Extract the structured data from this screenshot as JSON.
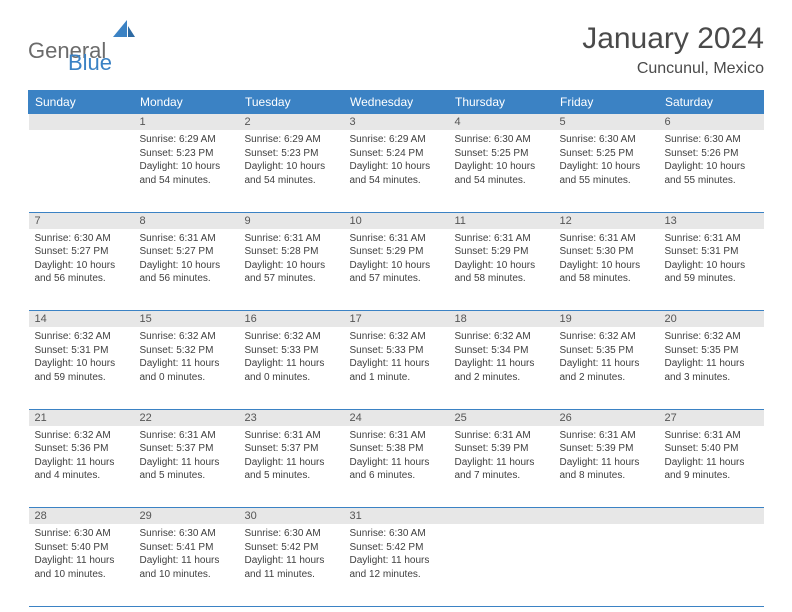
{
  "logo": {
    "word1": "General",
    "word2": "Blue"
  },
  "title": "January 2024",
  "location": "Cuncunul, Mexico",
  "colors": {
    "header_bg": "#3b82c4",
    "header_fg": "#ffffff",
    "daynum_bg": "#e7e7e7",
    "cell_border": "#3b82c4",
    "logo_gray": "#6b6b6b",
    "logo_blue": "#3b82c4",
    "text": "#404040"
  },
  "days_of_week": [
    "Sunday",
    "Monday",
    "Tuesday",
    "Wednesday",
    "Thursday",
    "Friday",
    "Saturday"
  ],
  "weeks": [
    {
      "nums": [
        "",
        "1",
        "2",
        "3",
        "4",
        "5",
        "6"
      ],
      "cells": [
        null,
        {
          "sunrise": "Sunrise: 6:29 AM",
          "sunset": "Sunset: 5:23 PM",
          "day1": "Daylight: 10 hours",
          "day2": "and 54 minutes."
        },
        {
          "sunrise": "Sunrise: 6:29 AM",
          "sunset": "Sunset: 5:23 PM",
          "day1": "Daylight: 10 hours",
          "day2": "and 54 minutes."
        },
        {
          "sunrise": "Sunrise: 6:29 AM",
          "sunset": "Sunset: 5:24 PM",
          "day1": "Daylight: 10 hours",
          "day2": "and 54 minutes."
        },
        {
          "sunrise": "Sunrise: 6:30 AM",
          "sunset": "Sunset: 5:25 PM",
          "day1": "Daylight: 10 hours",
          "day2": "and 54 minutes."
        },
        {
          "sunrise": "Sunrise: 6:30 AM",
          "sunset": "Sunset: 5:25 PM",
          "day1": "Daylight: 10 hours",
          "day2": "and 55 minutes."
        },
        {
          "sunrise": "Sunrise: 6:30 AM",
          "sunset": "Sunset: 5:26 PM",
          "day1": "Daylight: 10 hours",
          "day2": "and 55 minutes."
        }
      ]
    },
    {
      "nums": [
        "7",
        "8",
        "9",
        "10",
        "11",
        "12",
        "13"
      ],
      "cells": [
        {
          "sunrise": "Sunrise: 6:30 AM",
          "sunset": "Sunset: 5:27 PM",
          "day1": "Daylight: 10 hours",
          "day2": "and 56 minutes."
        },
        {
          "sunrise": "Sunrise: 6:31 AM",
          "sunset": "Sunset: 5:27 PM",
          "day1": "Daylight: 10 hours",
          "day2": "and 56 minutes."
        },
        {
          "sunrise": "Sunrise: 6:31 AM",
          "sunset": "Sunset: 5:28 PM",
          "day1": "Daylight: 10 hours",
          "day2": "and 57 minutes."
        },
        {
          "sunrise": "Sunrise: 6:31 AM",
          "sunset": "Sunset: 5:29 PM",
          "day1": "Daylight: 10 hours",
          "day2": "and 57 minutes."
        },
        {
          "sunrise": "Sunrise: 6:31 AM",
          "sunset": "Sunset: 5:29 PM",
          "day1": "Daylight: 10 hours",
          "day2": "and 58 minutes."
        },
        {
          "sunrise": "Sunrise: 6:31 AM",
          "sunset": "Sunset: 5:30 PM",
          "day1": "Daylight: 10 hours",
          "day2": "and 58 minutes."
        },
        {
          "sunrise": "Sunrise: 6:31 AM",
          "sunset": "Sunset: 5:31 PM",
          "day1": "Daylight: 10 hours",
          "day2": "and 59 minutes."
        }
      ]
    },
    {
      "nums": [
        "14",
        "15",
        "16",
        "17",
        "18",
        "19",
        "20"
      ],
      "cells": [
        {
          "sunrise": "Sunrise: 6:32 AM",
          "sunset": "Sunset: 5:31 PM",
          "day1": "Daylight: 10 hours",
          "day2": "and 59 minutes."
        },
        {
          "sunrise": "Sunrise: 6:32 AM",
          "sunset": "Sunset: 5:32 PM",
          "day1": "Daylight: 11 hours",
          "day2": "and 0 minutes."
        },
        {
          "sunrise": "Sunrise: 6:32 AM",
          "sunset": "Sunset: 5:33 PM",
          "day1": "Daylight: 11 hours",
          "day2": "and 0 minutes."
        },
        {
          "sunrise": "Sunrise: 6:32 AM",
          "sunset": "Sunset: 5:33 PM",
          "day1": "Daylight: 11 hours",
          "day2": "and 1 minute."
        },
        {
          "sunrise": "Sunrise: 6:32 AM",
          "sunset": "Sunset: 5:34 PM",
          "day1": "Daylight: 11 hours",
          "day2": "and 2 minutes."
        },
        {
          "sunrise": "Sunrise: 6:32 AM",
          "sunset": "Sunset: 5:35 PM",
          "day1": "Daylight: 11 hours",
          "day2": "and 2 minutes."
        },
        {
          "sunrise": "Sunrise: 6:32 AM",
          "sunset": "Sunset: 5:35 PM",
          "day1": "Daylight: 11 hours",
          "day2": "and 3 minutes."
        }
      ]
    },
    {
      "nums": [
        "21",
        "22",
        "23",
        "24",
        "25",
        "26",
        "27"
      ],
      "cells": [
        {
          "sunrise": "Sunrise: 6:32 AM",
          "sunset": "Sunset: 5:36 PM",
          "day1": "Daylight: 11 hours",
          "day2": "and 4 minutes."
        },
        {
          "sunrise": "Sunrise: 6:31 AM",
          "sunset": "Sunset: 5:37 PM",
          "day1": "Daylight: 11 hours",
          "day2": "and 5 minutes."
        },
        {
          "sunrise": "Sunrise: 6:31 AM",
          "sunset": "Sunset: 5:37 PM",
          "day1": "Daylight: 11 hours",
          "day2": "and 5 minutes."
        },
        {
          "sunrise": "Sunrise: 6:31 AM",
          "sunset": "Sunset: 5:38 PM",
          "day1": "Daylight: 11 hours",
          "day2": "and 6 minutes."
        },
        {
          "sunrise": "Sunrise: 6:31 AM",
          "sunset": "Sunset: 5:39 PM",
          "day1": "Daylight: 11 hours",
          "day2": "and 7 minutes."
        },
        {
          "sunrise": "Sunrise: 6:31 AM",
          "sunset": "Sunset: 5:39 PM",
          "day1": "Daylight: 11 hours",
          "day2": "and 8 minutes."
        },
        {
          "sunrise": "Sunrise: 6:31 AM",
          "sunset": "Sunset: 5:40 PM",
          "day1": "Daylight: 11 hours",
          "day2": "and 9 minutes."
        }
      ]
    },
    {
      "nums": [
        "28",
        "29",
        "30",
        "31",
        "",
        "",
        ""
      ],
      "cells": [
        {
          "sunrise": "Sunrise: 6:30 AM",
          "sunset": "Sunset: 5:40 PM",
          "day1": "Daylight: 11 hours",
          "day2": "and 10 minutes."
        },
        {
          "sunrise": "Sunrise: 6:30 AM",
          "sunset": "Sunset: 5:41 PM",
          "day1": "Daylight: 11 hours",
          "day2": "and 10 minutes."
        },
        {
          "sunrise": "Sunrise: 6:30 AM",
          "sunset": "Sunset: 5:42 PM",
          "day1": "Daylight: 11 hours",
          "day2": "and 11 minutes."
        },
        {
          "sunrise": "Sunrise: 6:30 AM",
          "sunset": "Sunset: 5:42 PM",
          "day1": "Daylight: 11 hours",
          "day2": "and 12 minutes."
        },
        null,
        null,
        null
      ]
    }
  ]
}
